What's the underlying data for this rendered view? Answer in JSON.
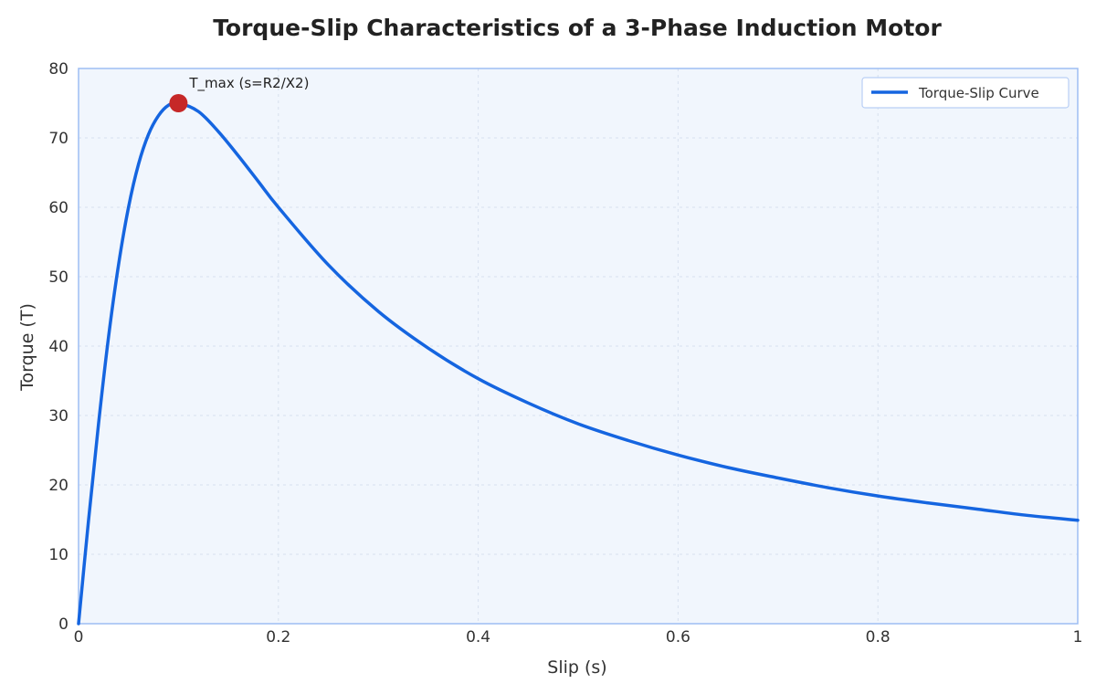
{
  "chart_data": {
    "type": "line",
    "title": "Torque-Slip Characteristics of a 3-Phase Induction Motor",
    "xlabel": "Slip (s)",
    "ylabel": "Torque (T)",
    "xlim": [
      0,
      1
    ],
    "ylim": [
      0,
      80
    ],
    "xticks": [
      0,
      0.2,
      0.4,
      0.6,
      0.8,
      1
    ],
    "xtick_labels": [
      "0",
      "0.2",
      "0.4",
      "0.6",
      "0.8",
      "1"
    ],
    "yticks": [
      0,
      10,
      20,
      30,
      40,
      50,
      60,
      70,
      80
    ],
    "ytick_labels": [
      "0",
      "10",
      "20",
      "30",
      "40",
      "50",
      "60",
      "70",
      "80"
    ],
    "grid": true,
    "legend_position": "top-right",
    "series": [
      {
        "name": "Torque-Slip Curve",
        "color": "#1565e0",
        "x": [
          0,
          0.01,
          0.02,
          0.03,
          0.04,
          0.05,
          0.06,
          0.07,
          0.08,
          0.09,
          0.1,
          0.12,
          0.14,
          0.16,
          0.18,
          0.2,
          0.25,
          0.3,
          0.35,
          0.4,
          0.45,
          0.5,
          0.55,
          0.6,
          0.65,
          0.7,
          0.75,
          0.8,
          0.85,
          0.9,
          0.95,
          1.0
        ],
        "y": [
          0,
          14.9,
          28.8,
          41.3,
          51.7,
          60.0,
          66.2,
          70.5,
          73.2,
          74.7,
          75.0,
          73.8,
          70.9,
          67.4,
          63.7,
          60.0,
          51.7,
          45.0,
          39.7,
          35.3,
          31.8,
          28.8,
          26.4,
          24.3,
          22.5,
          21.0,
          19.6,
          18.4,
          17.4,
          16.5,
          15.6,
          14.9
        ]
      }
    ],
    "annotations": [
      {
        "text": "T_max (s=R2/X2)",
        "x": 0.1,
        "y": 75,
        "marker_color": "#c62828"
      }
    ]
  }
}
